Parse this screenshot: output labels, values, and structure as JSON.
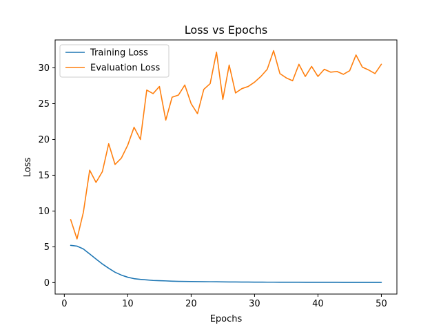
{
  "chart_data": {
    "type": "line",
    "title": "Loss vs Epochs",
    "xlabel": "Epochs",
    "ylabel": "Loss",
    "xlim": [
      -1.45,
      52.45
    ],
    "ylim": [
      -1.6,
      33.9
    ],
    "x_ticks": [
      0,
      10,
      20,
      30,
      40,
      50
    ],
    "y_ticks": [
      0,
      5,
      10,
      15,
      20,
      25,
      30
    ],
    "grid": false,
    "legend_position": "top-left",
    "x": [
      1,
      2,
      3,
      4,
      5,
      6,
      7,
      8,
      9,
      10,
      11,
      12,
      13,
      14,
      15,
      16,
      17,
      18,
      19,
      20,
      21,
      22,
      23,
      24,
      25,
      26,
      27,
      28,
      29,
      30,
      31,
      32,
      33,
      34,
      35,
      36,
      37,
      38,
      39,
      40,
      41,
      42,
      43,
      44,
      45,
      46,
      47,
      48,
      49,
      50
    ],
    "series": [
      {
        "name": "Training Loss",
        "color": "#1f77b4",
        "values": [
          5.2,
          5.1,
          4.7,
          4.0,
          3.3,
          2.6,
          2.0,
          1.45,
          1.05,
          0.75,
          0.55,
          0.45,
          0.38,
          0.3,
          0.27,
          0.24,
          0.2,
          0.17,
          0.16,
          0.15,
          0.14,
          0.13,
          0.12,
          0.11,
          0.1,
          0.09,
          0.09,
          0.08,
          0.08,
          0.07,
          0.07,
          0.06,
          0.06,
          0.05,
          0.05,
          0.05,
          0.05,
          0.04,
          0.04,
          0.04,
          0.04,
          0.04,
          0.04,
          0.03,
          0.03,
          0.03,
          0.03,
          0.03,
          0.03,
          0.03
        ]
      },
      {
        "name": "Evaluation Loss",
        "color": "#ff7f0e",
        "values": [
          8.8,
          6.1,
          9.8,
          15.7,
          14.0,
          15.5,
          19.4,
          16.5,
          17.4,
          19.2,
          21.7,
          20.0,
          26.9,
          26.4,
          27.4,
          22.7,
          25.9,
          26.2,
          27.6,
          25.0,
          23.6,
          27.0,
          27.8,
          32.2,
          25.6,
          30.4,
          26.5,
          27.1,
          27.4,
          28.0,
          28.8,
          29.8,
          32.4,
          29.2,
          28.6,
          28.2,
          30.5,
          28.8,
          30.2,
          28.8,
          29.8,
          29.4,
          29.5,
          29.1,
          29.6,
          31.8,
          30.1,
          29.7,
          29.2,
          30.5
        ]
      }
    ]
  }
}
